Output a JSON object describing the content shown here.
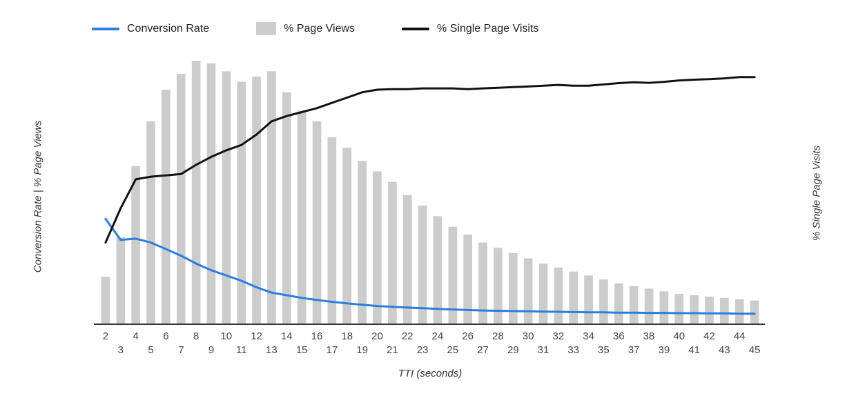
{
  "legend": {
    "items": [
      {
        "label": "Conversion Rate",
        "type": "line",
        "color": "#2a7de1"
      },
      {
        "label": "% Page Views",
        "type": "bar",
        "color": "#cccccc"
      },
      {
        "label": "% Single Page Visits",
        "type": "line",
        "color": "#111111"
      }
    ]
  },
  "axes": {
    "left_label": "Conversion Rate | % Page Views",
    "right_label": "% Single Page Visits",
    "x_label": "TTI (seconds)"
  },
  "chart_data": {
    "type": "combo",
    "title": "",
    "xlabel": "TTI (seconds)",
    "ylabel_left": "Conversion Rate | % Page Views",
    "ylabel_right": "% Single Page Visits",
    "y_tick_labels_visible": false,
    "grid": false,
    "legend_position": "top",
    "ylim": [
      0,
      100
    ],
    "x": [
      2,
      3,
      4,
      5,
      6,
      7,
      8,
      9,
      10,
      11,
      12,
      13,
      14,
      15,
      16,
      17,
      18,
      19,
      20,
      21,
      22,
      23,
      24,
      25,
      26,
      27,
      28,
      29,
      30,
      31,
      32,
      33,
      34,
      35,
      36,
      37,
      38,
      39,
      40,
      41,
      42,
      43,
      44,
      45
    ],
    "series": [
      {
        "name": "% Page Views",
        "type": "bar",
        "axis": "left",
        "color": "#cccccc",
        "values": [
          18,
          33,
          60,
          77,
          89,
          95,
          100,
          99,
          96,
          92,
          94,
          96,
          88,
          81,
          77,
          71,
          67,
          62,
          58,
          54,
          49,
          45,
          41,
          37,
          34,
          31,
          29,
          27,
          25,
          23,
          21.5,
          20,
          18.5,
          17,
          15.5,
          14.5,
          13.5,
          12.5,
          11.5,
          11,
          10.5,
          10,
          9.5,
          9
        ]
      },
      {
        "name": "Conversion Rate",
        "type": "line",
        "axis": "left",
        "color": "#2a7de1",
        "values": [
          40,
          32,
          32.5,
          31,
          28.5,
          26,
          23,
          20.5,
          18.5,
          16.5,
          14,
          12,
          11,
          10,
          9.2,
          8.5,
          7.9,
          7.4,
          6.9,
          6.6,
          6.3,
          6.1,
          5.8,
          5.6,
          5.4,
          5.2,
          5.1,
          5,
          4.9,
          4.8,
          4.7,
          4.6,
          4.5,
          4.5,
          4.4,
          4.4,
          4.3,
          4.3,
          4.2,
          4.2,
          4.1,
          4.1,
          4,
          4
        ]
      },
      {
        "name": "% Single Page Visits",
        "type": "line",
        "axis": "right",
        "color": "#111111",
        "values": [
          31,
          44,
          55,
          56,
          56.5,
          57,
          60.5,
          63.5,
          66,
          68,
          72,
          77,
          79,
          80.5,
          82,
          84,
          86,
          88,
          89,
          89.2,
          89.2,
          89.5,
          89.5,
          89.5,
          89.2,
          89.5,
          89.7,
          90,
          90.2,
          90.5,
          90.8,
          90.5,
          90.5,
          91,
          91.5,
          91.8,
          91.6,
          92,
          92.5,
          92.8,
          93,
          93.3,
          93.8,
          93.8
        ]
      }
    ]
  }
}
